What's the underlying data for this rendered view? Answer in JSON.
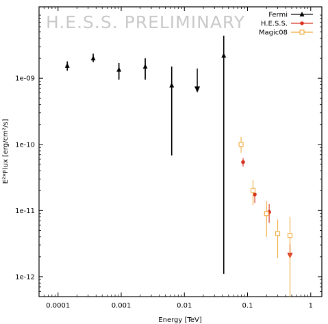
{
  "watermark": "H.E.S.S. PRELIMINARY",
  "chart_data": {
    "type": "scatter",
    "xlabel": "Energy [TeV]",
    "ylabel": "E²*Flux [erg/cm²/s]",
    "xscale": "log",
    "yscale": "log",
    "xlim": [
      5e-05,
      1.5
    ],
    "ylim": [
      5e-13,
      1.2e-08
    ],
    "x_ticks": [
      {
        "value": 0.0001,
        "label": "0.0001"
      },
      {
        "value": 0.001,
        "label": "0.001"
      },
      {
        "value": 0.01,
        "label": "0.01"
      },
      {
        "value": 0.1,
        "label": "0.1"
      },
      {
        "value": 1,
        "label": "1"
      }
    ],
    "y_ticks": [
      {
        "value": 1e-09,
        "label": "1e-09"
      },
      {
        "value": 1e-10,
        "label": "1e-10"
      },
      {
        "value": 1e-11,
        "label": "1e-11"
      },
      {
        "value": 1e-12,
        "label": "1e-12"
      }
    ],
    "legend_position": "top-right",
    "series": [
      {
        "name": "Fermi",
        "color": "#000000",
        "marker": "triangle",
        "points": [
          {
            "x": 0.00014,
            "y": 1.55e-09,
            "ylo": 1.3e-09,
            "yhi": 1.8e-09
          },
          {
            "x": 0.00036,
            "y": 2e-09,
            "ylo": 1.75e-09,
            "yhi": 2.35e-09
          },
          {
            "x": 0.00092,
            "y": 1.35e-09,
            "ylo": 9.5e-10,
            "yhi": 1.7e-09
          },
          {
            "x": 0.0024,
            "y": 1.5e-09,
            "ylo": 9.5e-10,
            "yhi": 2e-09
          },
          {
            "x": 0.0063,
            "y": 7.8e-10,
            "ylo": 6.8e-11,
            "yhi": 1.5e-09
          },
          {
            "x": 0.042,
            "y": 2.2e-09,
            "ylo": 1.1e-12,
            "yhi": 4.4e-09
          }
        ],
        "upper_limits": [
          {
            "x": 0.016,
            "y": 1.4e-09,
            "yend": 6.5e-10
          }
        ]
      },
      {
        "name": "H.E.S.S.",
        "color": "#d7301f",
        "marker": "circle",
        "points": [
          {
            "x": 0.085,
            "y": 5.4e-11,
            "ylo": 4.6e-11,
            "yhi": 6.2e-11
          },
          {
            "x": 0.13,
            "y": 1.75e-11,
            "ylo": 1.3e-11,
            "yhi": 2.2e-11
          },
          {
            "x": 0.22,
            "y": 9.5e-12,
            "ylo": 6.5e-12,
            "yhi": 1.25e-11
          }
        ],
        "upper_limits": [
          {
            "x": 0.47,
            "y": 3.1e-12,
            "yend": 2e-12
          }
        ]
      },
      {
        "name": "Magic08",
        "color": "#f0a93b",
        "marker": "open-square",
        "points": [
          {
            "x": 0.079,
            "y": 1e-10,
            "ylo": 7.5e-11,
            "yhi": 1.3e-10
          },
          {
            "x": 0.122,
            "y": 2e-11,
            "ylo": 1.2e-11,
            "yhi": 2.9e-11
          },
          {
            "x": 0.2,
            "y": 9e-12,
            "ylo": 4e-12,
            "yhi": 1.4e-11
          },
          {
            "x": 0.3,
            "y": 4.5e-12,
            "ylo": 1.9e-12,
            "yhi": 7.3e-12
          },
          {
            "x": 0.47,
            "y": 4.2e-12,
            "ylo": 5e-13,
            "yhi": 8e-12
          }
        ]
      }
    ]
  }
}
